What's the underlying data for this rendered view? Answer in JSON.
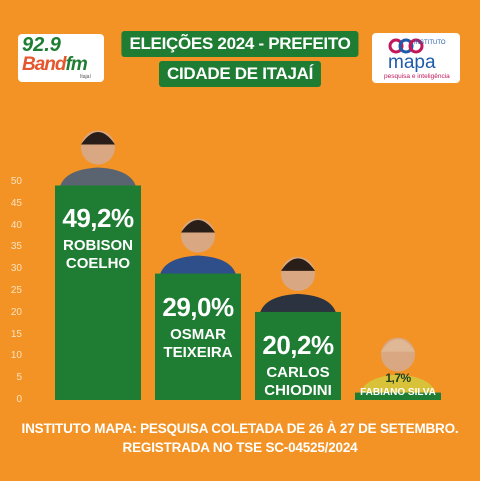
{
  "chart_data": {
    "type": "bar",
    "title": "ELEIÇÕES 2024 - PREFEITO",
    "subtitle": "CIDADE DE ITAJAÍ",
    "categories": [
      "ROBISON COELHO",
      "OSMAR TEIXEIRA",
      "CARLOS CHIODINI",
      "FABIANO SILVA"
    ],
    "values": [
      49.2,
      29.0,
      20.2,
      1.7
    ],
    "value_labels": [
      "49,2%",
      "29,0%",
      "20,2%",
      "1,7%"
    ],
    "color": "#1f7d33",
    "ylim": [
      0,
      50
    ],
    "yticks": [
      0,
      5,
      10,
      15,
      20,
      25,
      30,
      35,
      40,
      45,
      50
    ],
    "grid": false,
    "footnote": [
      "INSTITUTO MAPA: PESQUISA COLETADA DE 26 À 27 DE SETEMBRO.",
      "REGISTRADA NO TSE SC-04525/2024"
    ]
  },
  "logos": {
    "band": {
      "frequency": "92.9",
      "brand": "Band",
      "suffix": "fm",
      "city": "Itajaí"
    },
    "mapa": {
      "prefix": "INSTITUTO",
      "name": "mapa",
      "tagline": "pesquisa e inteligência"
    }
  }
}
